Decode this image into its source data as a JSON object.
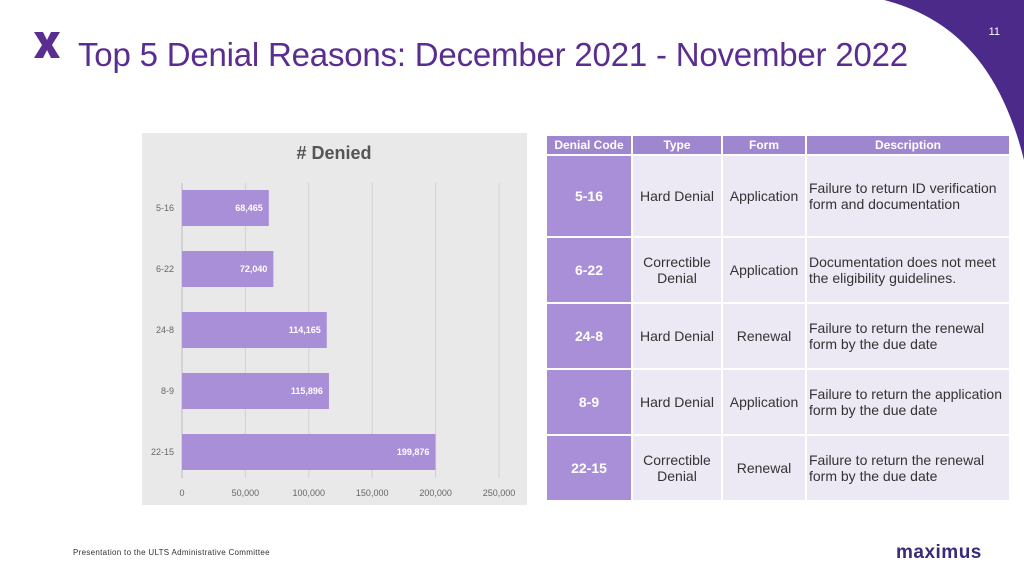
{
  "page": {
    "number": "11",
    "title": "Top 5 Denial Reasons: December 2021 - November 2022",
    "footer": "Presentation to the ULTS Administrative Committee",
    "brand": "maximus"
  },
  "colors": {
    "accent": "#5a2d91",
    "bar": "#a98fd7",
    "header": "#9f87d0",
    "cell": "#ece9f4"
  },
  "chart_data": {
    "type": "bar",
    "orientation": "horizontal",
    "title": "# Denied",
    "categories": [
      "5-16",
      "6-22",
      "24-8",
      "8-9",
      "22-15"
    ],
    "values": [
      68465,
      72040,
      114165,
      115896,
      199876
    ],
    "value_labels": [
      "68,465",
      "72,040",
      "114,165",
      "115,896",
      "199,876"
    ],
    "xlim": [
      0,
      250000
    ],
    "xticks": [
      0,
      50000,
      100000,
      150000,
      200000,
      250000
    ],
    "xtick_labels": [
      "0",
      "50,000",
      "100,000",
      "150,000",
      "200,000",
      "250,000"
    ],
    "grid": true,
    "legend": "none"
  },
  "table": {
    "headers": [
      "Denial Code",
      "Type",
      "Form",
      "Description"
    ],
    "rows": [
      {
        "code": "5-16",
        "type": "Hard Denial",
        "form": "Application",
        "description": "Failure to return ID verification form and documentation"
      },
      {
        "code": "6-22",
        "type": "Correctible Denial",
        "form": "Application",
        "description": "Documentation does not meet the eligibility guidelines."
      },
      {
        "code": "24-8",
        "type": "Hard Denial",
        "form": "Renewal",
        "description": "Failure to return the renewal form by the due date"
      },
      {
        "code": "8-9",
        "type": "Hard Denial",
        "form": "Application",
        "description": "Failure to return the application form by the due date"
      },
      {
        "code": "22-15",
        "type": "Correctible Denial",
        "form": "Renewal",
        "description": "Failure to return the renewal form by the due date"
      }
    ]
  }
}
